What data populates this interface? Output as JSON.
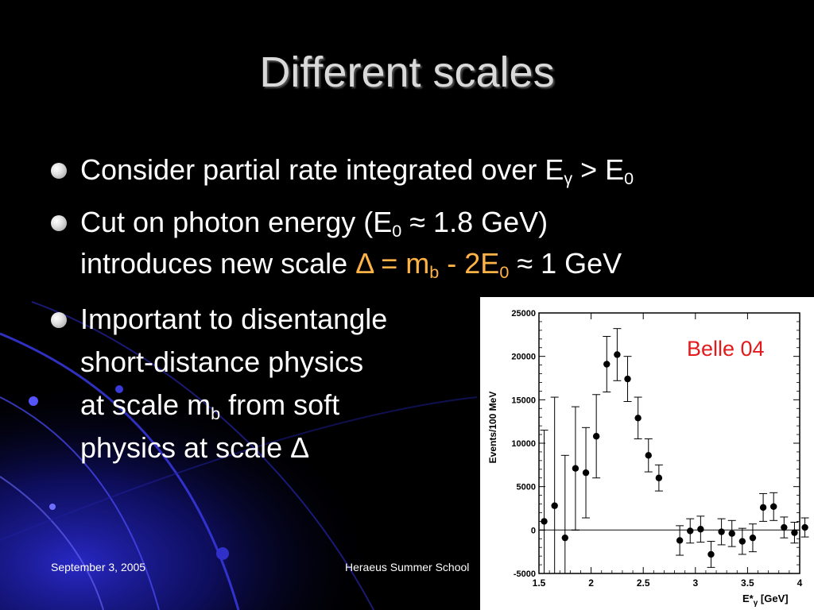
{
  "slide": {
    "title": "Different scales",
    "bullets": [
      {
        "parts": [
          "Consider partial rate integrated over E",
          "γ",
          " > E",
          "0"
        ]
      },
      {
        "line1": [
          "Cut on photon energy (E",
          "0",
          " ≈ 1.8 GeV)"
        ],
        "line2": [
          "introduces new scale ",
          "Δ = m",
          "b",
          " - 2E",
          "0",
          " ≈ 1 GeV"
        ]
      },
      {
        "lines": [
          "Important to disentangle",
          "short-distance physics",
          "at scale m",
          "b",
          " from soft",
          "physics at scale Δ"
        ]
      }
    ],
    "footer_left": "September 3, 2005",
    "footer_center": "Heraeus Summer School"
  },
  "colors": {
    "highlight": "#ffb347",
    "annotation": "#e31a1c"
  },
  "chart_data": {
    "type": "scatter",
    "annotation": "Belle 04",
    "xlabel": "E*",
    "xlabel_sub": "γ",
    "xlabel_unit": " [GeV]",
    "ylabel": "Events/100 MeV",
    "xlim": [
      1.5,
      4.0
    ],
    "ylim": [
      -5000,
      25000
    ],
    "x_ticks": [
      "1.5",
      "2",
      "2.5",
      "3",
      "3.5",
      "4"
    ],
    "y_ticks": [
      "25000",
      "20000",
      "15000",
      "10000",
      "5000",
      "0",
      "-5000"
    ],
    "zero_line": true,
    "points": [
      {
        "x": 1.55,
        "y": 1000,
        "err": 10500
      },
      {
        "x": 1.65,
        "y": 2800,
        "err": 12500
      },
      {
        "x": 1.75,
        "y": -900,
        "err": 9500
      },
      {
        "x": 1.85,
        "y": 7100,
        "err": 7100
      },
      {
        "x": 1.95,
        "y": 6600,
        "err": 5200
      },
      {
        "x": 2.05,
        "y": 10800,
        "err": 4800
      },
      {
        "x": 2.15,
        "y": 19100,
        "err": 3200
      },
      {
        "x": 2.25,
        "y": 20200,
        "err": 3000
      },
      {
        "x": 2.35,
        "y": 17400,
        "err": 2600
      },
      {
        "x": 2.45,
        "y": 12900,
        "err": 2400
      },
      {
        "x": 2.55,
        "y": 8600,
        "err": 1900
      },
      {
        "x": 2.65,
        "y": 6000,
        "err": 1500
      },
      {
        "x": 2.85,
        "y": -1200,
        "err": 1700
      },
      {
        "x": 2.95,
        "y": -100,
        "err": 1400
      },
      {
        "x": 3.05,
        "y": 100,
        "err": 1500
      },
      {
        "x": 3.15,
        "y": -2800,
        "err": 1500
      },
      {
        "x": 3.25,
        "y": -200,
        "err": 1500
      },
      {
        "x": 3.35,
        "y": -400,
        "err": 1500
      },
      {
        "x": 3.45,
        "y": -1300,
        "err": 1500
      },
      {
        "x": 3.55,
        "y": -900,
        "err": 1600
      },
      {
        "x": 3.65,
        "y": 2600,
        "err": 1600
      },
      {
        "x": 3.75,
        "y": 2700,
        "err": 1600
      },
      {
        "x": 3.85,
        "y": 300,
        "err": 1200
      },
      {
        "x": 3.95,
        "y": -300,
        "err": 1200
      },
      {
        "x": 4.05,
        "y": 300,
        "err": 1100
      }
    ]
  }
}
